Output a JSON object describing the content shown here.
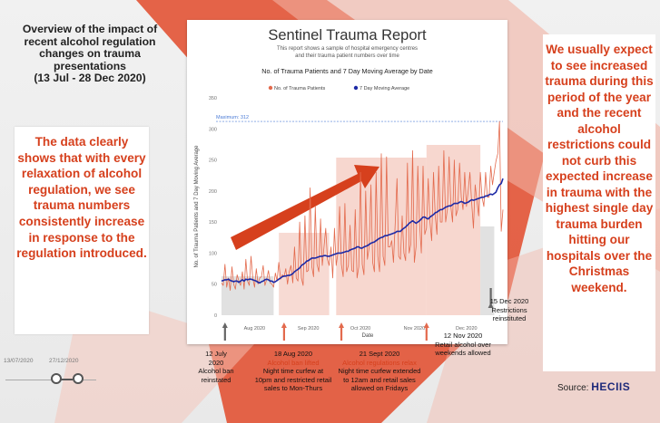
{
  "left_panel": {
    "title": "Overview of the impact of recent alcohol regulation changes on trauma presentations",
    "date_range": "(13 Jul - 28 Dec 2020)",
    "callout": "The data clearly shows that with every relaxation of alcohol regulation, we see trauma numbers consistently increase in response to the regulation introduced."
  },
  "right_panel": {
    "callout": "We usually expect to see increased trauma during this period of the year and the recent alcohol restrictions could not curb this expected increase in trauma with the highest single day trauma burden hitting our hospitals over the Christmas weekend."
  },
  "source": {
    "label": "Source:",
    "name": "HECIIS"
  },
  "slider": {
    "start": "13/07/2020",
    "end": "27/12/2020"
  },
  "report": {
    "title": "Sentinel Trauma Report",
    "subtitle_line1": "This report shows a sample of hospital emergency centres",
    "subtitle_line2": "and their trauma patient numbers over time"
  },
  "annotations": [
    {
      "date": "12 July 2020",
      "event": "Alcohol ban reinstated",
      "detail": ""
    },
    {
      "date": "18 Aug 2020",
      "event": "Alcohol ban lifted",
      "detail": "Night time curfew at 10pm and restricted retail sales to Mon-Thurs"
    },
    {
      "date": "21 Sept 2020",
      "event": "Alcohol regulations relax",
      "detail": "Night time curfew extended to 12am and retail sales allowed on Fridays"
    },
    {
      "date": "12 Nov 2020",
      "event": "Retail alcohol over weekends allowed",
      "detail": ""
    },
    {
      "date": "15 Dec 2020",
      "event": "Restrictions reinstituted",
      "detail": ""
    }
  ],
  "colors": {
    "accent": "#d6401d",
    "daily": "#e36a4d",
    "average": "#1d2aa6",
    "phase_fill": "#f3c6bb",
    "grey_band": "#c9c9c9"
  },
  "chart_data": {
    "type": "line",
    "title": "No. of Trauma Patients and 7 Day Moving Average by Date",
    "xlabel": "Date",
    "ylabel": "No. of Trauma Patients and 7 Day Moving Average",
    "ylim": [
      0,
      350
    ],
    "yticks": [
      0,
      50,
      100,
      150,
      200,
      250,
      300,
      350
    ],
    "xticks": [
      "Aug 2020",
      "Sep 2020",
      "Oct 2020",
      "Nov 2020",
      "Dec 2020"
    ],
    "max_line": {
      "label": "Maximum: 312",
      "value": 312
    },
    "series": [
      {
        "name": "No. of Trauma Patients",
        "color": "#e36a4d",
        "values": [
          52,
          48,
          82,
          45,
          60,
          40,
          78,
          50,
          42,
          65,
          55,
          48,
          70,
          42,
          90,
          55,
          48,
          95,
          60,
          45,
          75,
          50,
          60,
          62,
          80,
          48,
          58,
          72,
          52,
          50,
          45,
          68,
          55,
          85,
          58,
          65,
          62,
          75,
          50,
          70,
          80,
          52,
          110,
          60,
          55,
          150,
          60,
          48,
          160,
          70,
          72,
          205,
          78,
          62,
          175,
          82,
          70,
          155,
          80,
          110,
          140,
          90,
          80,
          110,
          60,
          140,
          80,
          100,
          175,
          82,
          62,
          180,
          70,
          80,
          145,
          72,
          70,
          170,
          60,
          78,
          230,
          82,
          65,
          200,
          90,
          110,
          210,
          85,
          70,
          230,
          95,
          70,
          260,
          95,
          80,
          255,
          110,
          110,
          120,
          85,
          150,
          220,
          95,
          90,
          160,
          100,
          88,
          245,
          100,
          115,
          265,
          85,
          110,
          240,
          150,
          100,
          240,
          130,
          140,
          220,
          150,
          120,
          230,
          160,
          130,
          240,
          150,
          150,
          265,
          150,
          170,
          255,
          175,
          150,
          250,
          160,
          170,
          245,
          190,
          170,
          230,
          175,
          200,
          230,
          180,
          140,
          210,
          185,
          160,
          230,
          190,
          175,
          230,
          190,
          190,
          240,
          210,
          230,
          248,
          260,
          312,
          135,
          170
        ]
      },
      {
        "name": "7 Day Moving Average",
        "color": "#1d2aa6",
        "values": [
          55,
          56,
          57,
          57,
          58,
          56,
          55,
          54,
          55,
          55,
          53,
          55,
          57,
          55,
          58,
          57,
          58,
          58,
          57,
          56,
          55,
          53,
          52,
          54,
          55,
          57,
          58,
          57,
          55,
          55,
          53,
          54,
          56,
          58,
          60,
          62,
          63,
          63,
          64,
          64,
          65,
          67,
          70,
          72,
          74,
          76,
          80,
          82,
          84,
          87,
          88,
          90,
          92,
          92,
          92,
          93,
          94,
          95,
          95,
          96,
          96,
          95,
          95,
          96,
          97,
          98,
          99,
          100,
          100,
          100,
          101,
          102,
          103,
          103,
          105,
          106,
          107,
          108,
          110,
          110,
          108,
          108,
          110,
          111,
          112,
          114,
          116,
          117,
          118,
          120,
          122,
          124,
          125,
          126,
          128,
          128,
          129,
          130,
          131,
          132,
          133,
          135,
          135,
          135,
          138,
          140,
          142,
          145,
          148,
          150,
          152,
          150,
          148,
          150,
          152,
          155,
          158,
          158,
          156,
          155,
          158,
          160,
          162,
          165,
          166,
          168,
          170,
          170,
          172,
          174,
          175,
          176,
          176,
          178,
          180,
          180,
          180,
          182,
          183,
          182,
          180,
          181,
          182,
          184,
          186,
          185,
          186,
          187,
          188,
          189,
          190,
          190,
          192,
          192,
          194,
          195,
          194,
          196,
          198,
          205,
          210,
          212,
          220
        ]
      }
    ]
  }
}
